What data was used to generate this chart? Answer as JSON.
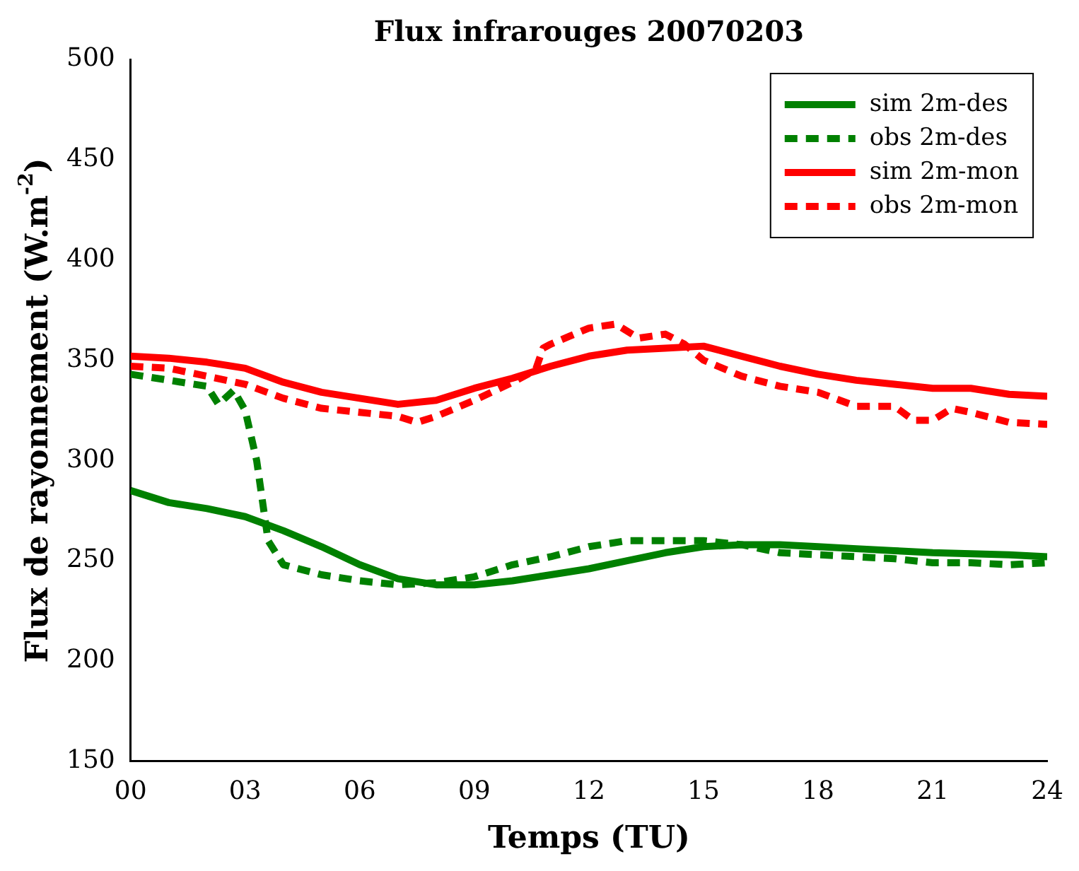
{
  "chart_data": {
    "type": "line",
    "title": "Flux infrarouges 20070203",
    "xlabel": "Temps (TU)",
    "ylabel": "Flux de rayonnement (W.m$^{-2}$)",
    "xlim": [
      0,
      24
    ],
    "xticks": [
      {
        "value": 0,
        "label": "00"
      },
      {
        "value": 3,
        "label": "03"
      },
      {
        "value": 6,
        "label": "06"
      },
      {
        "value": 9,
        "label": "09"
      },
      12,
      15,
      18,
      21,
      24
    ],
    "ylim": [
      150,
      500
    ],
    "yticks": [
      150,
      200,
      250,
      300,
      350,
      400,
      450,
      500
    ],
    "grid": false,
    "legend": "top right",
    "marker": "none",
    "series": [
      {
        "name": "sim 2m-des",
        "color": "#008000",
        "line_style": "solid",
        "x": [
          0,
          1,
          2,
          3,
          4,
          5,
          6,
          7,
          8,
          9,
          10,
          11,
          12,
          13,
          14,
          15,
          16,
          17,
          18,
          19,
          20,
          21,
          22,
          23,
          24
        ],
        "values": [
          285,
          279,
          276,
          272,
          265,
          257,
          248,
          241,
          238,
          238,
          240,
          243,
          246,
          250,
          254,
          257,
          258,
          258,
          257,
          256,
          255,
          254,
          253.5,
          253,
          252
        ]
      },
      {
        "name": "obs 2m-des",
        "color": "#008000",
        "line_style": "dashed",
        "x": [
          0,
          1,
          2,
          2.3,
          2.7,
          3,
          3.3,
          3.6,
          4,
          5,
          6,
          7,
          8,
          9,
          10,
          11,
          12,
          13,
          14,
          15,
          16,
          17,
          18,
          19,
          20,
          21,
          22,
          23,
          24
        ],
        "values": [
          343,
          340,
          337,
          328,
          335,
          325,
          300,
          260,
          248,
          243,
          240,
          238,
          239,
          242,
          248,
          252,
          257,
          260,
          260,
          260,
          258,
          254,
          253,
          252,
          251,
          249,
          249,
          248,
          249
        ]
      },
      {
        "name": "sim 2m-mon",
        "color": "#ff0000",
        "line_style": "solid",
        "x": [
          0,
          1,
          2,
          3,
          4,
          5,
          6,
          7,
          8,
          9,
          10,
          11,
          12,
          13,
          14,
          15,
          16,
          17,
          18,
          19,
          20,
          21,
          22,
          23,
          24
        ],
        "values": [
          352,
          351,
          349,
          346,
          339,
          334,
          331,
          328,
          330,
          336,
          341,
          347,
          352,
          355,
          356,
          357,
          352,
          347,
          343,
          340,
          338,
          336,
          336,
          333,
          332
        ]
      },
      {
        "name": "obs 2m-mon",
        "color": "#ff0000",
        "line_style": "dashed",
        "x": [
          0,
          1,
          2,
          3,
          4,
          5,
          6,
          7,
          7.5,
          8,
          9,
          10,
          10.6,
          10.8,
          11,
          11.5,
          12,
          12.7,
          13.3,
          14,
          14.5,
          15,
          16,
          17,
          18,
          19,
          20,
          20.5,
          21,
          21.5,
          22,
          23,
          24
        ],
        "values": [
          347,
          346,
          342,
          338,
          331,
          326,
          324,
          322,
          319,
          322,
          330,
          339,
          345,
          356,
          358,
          362,
          366,
          368,
          361,
          363,
          358,
          350,
          342,
          337,
          334,
          327,
          327,
          320,
          320,
          326,
          324,
          319,
          318
        ]
      }
    ]
  }
}
